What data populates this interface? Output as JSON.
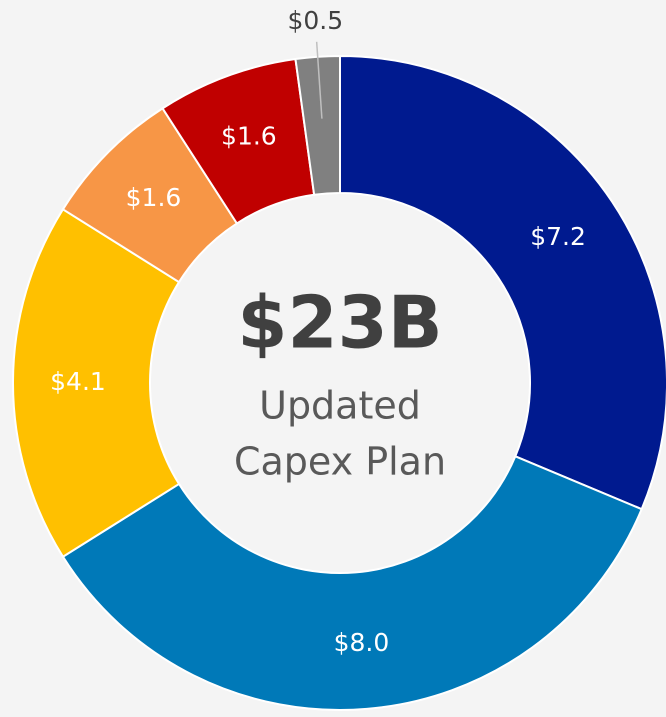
{
  "chart_data": {
    "type": "donut",
    "center_title": "$23B",
    "center_subtitle": [
      "Updated",
      "Capex Plan"
    ],
    "values": [
      7.2,
      8.0,
      4.1,
      1.6,
      1.6,
      0.5
    ],
    "value_labels": [
      "$7.2",
      "$8.0",
      "$4.1",
      "$1.6",
      "$1.6",
      "$0.5"
    ],
    "colors": [
      "#001a8f",
      "#0079b8",
      "#ffc000",
      "#f79646",
      "#c00000",
      "#808080"
    ]
  }
}
